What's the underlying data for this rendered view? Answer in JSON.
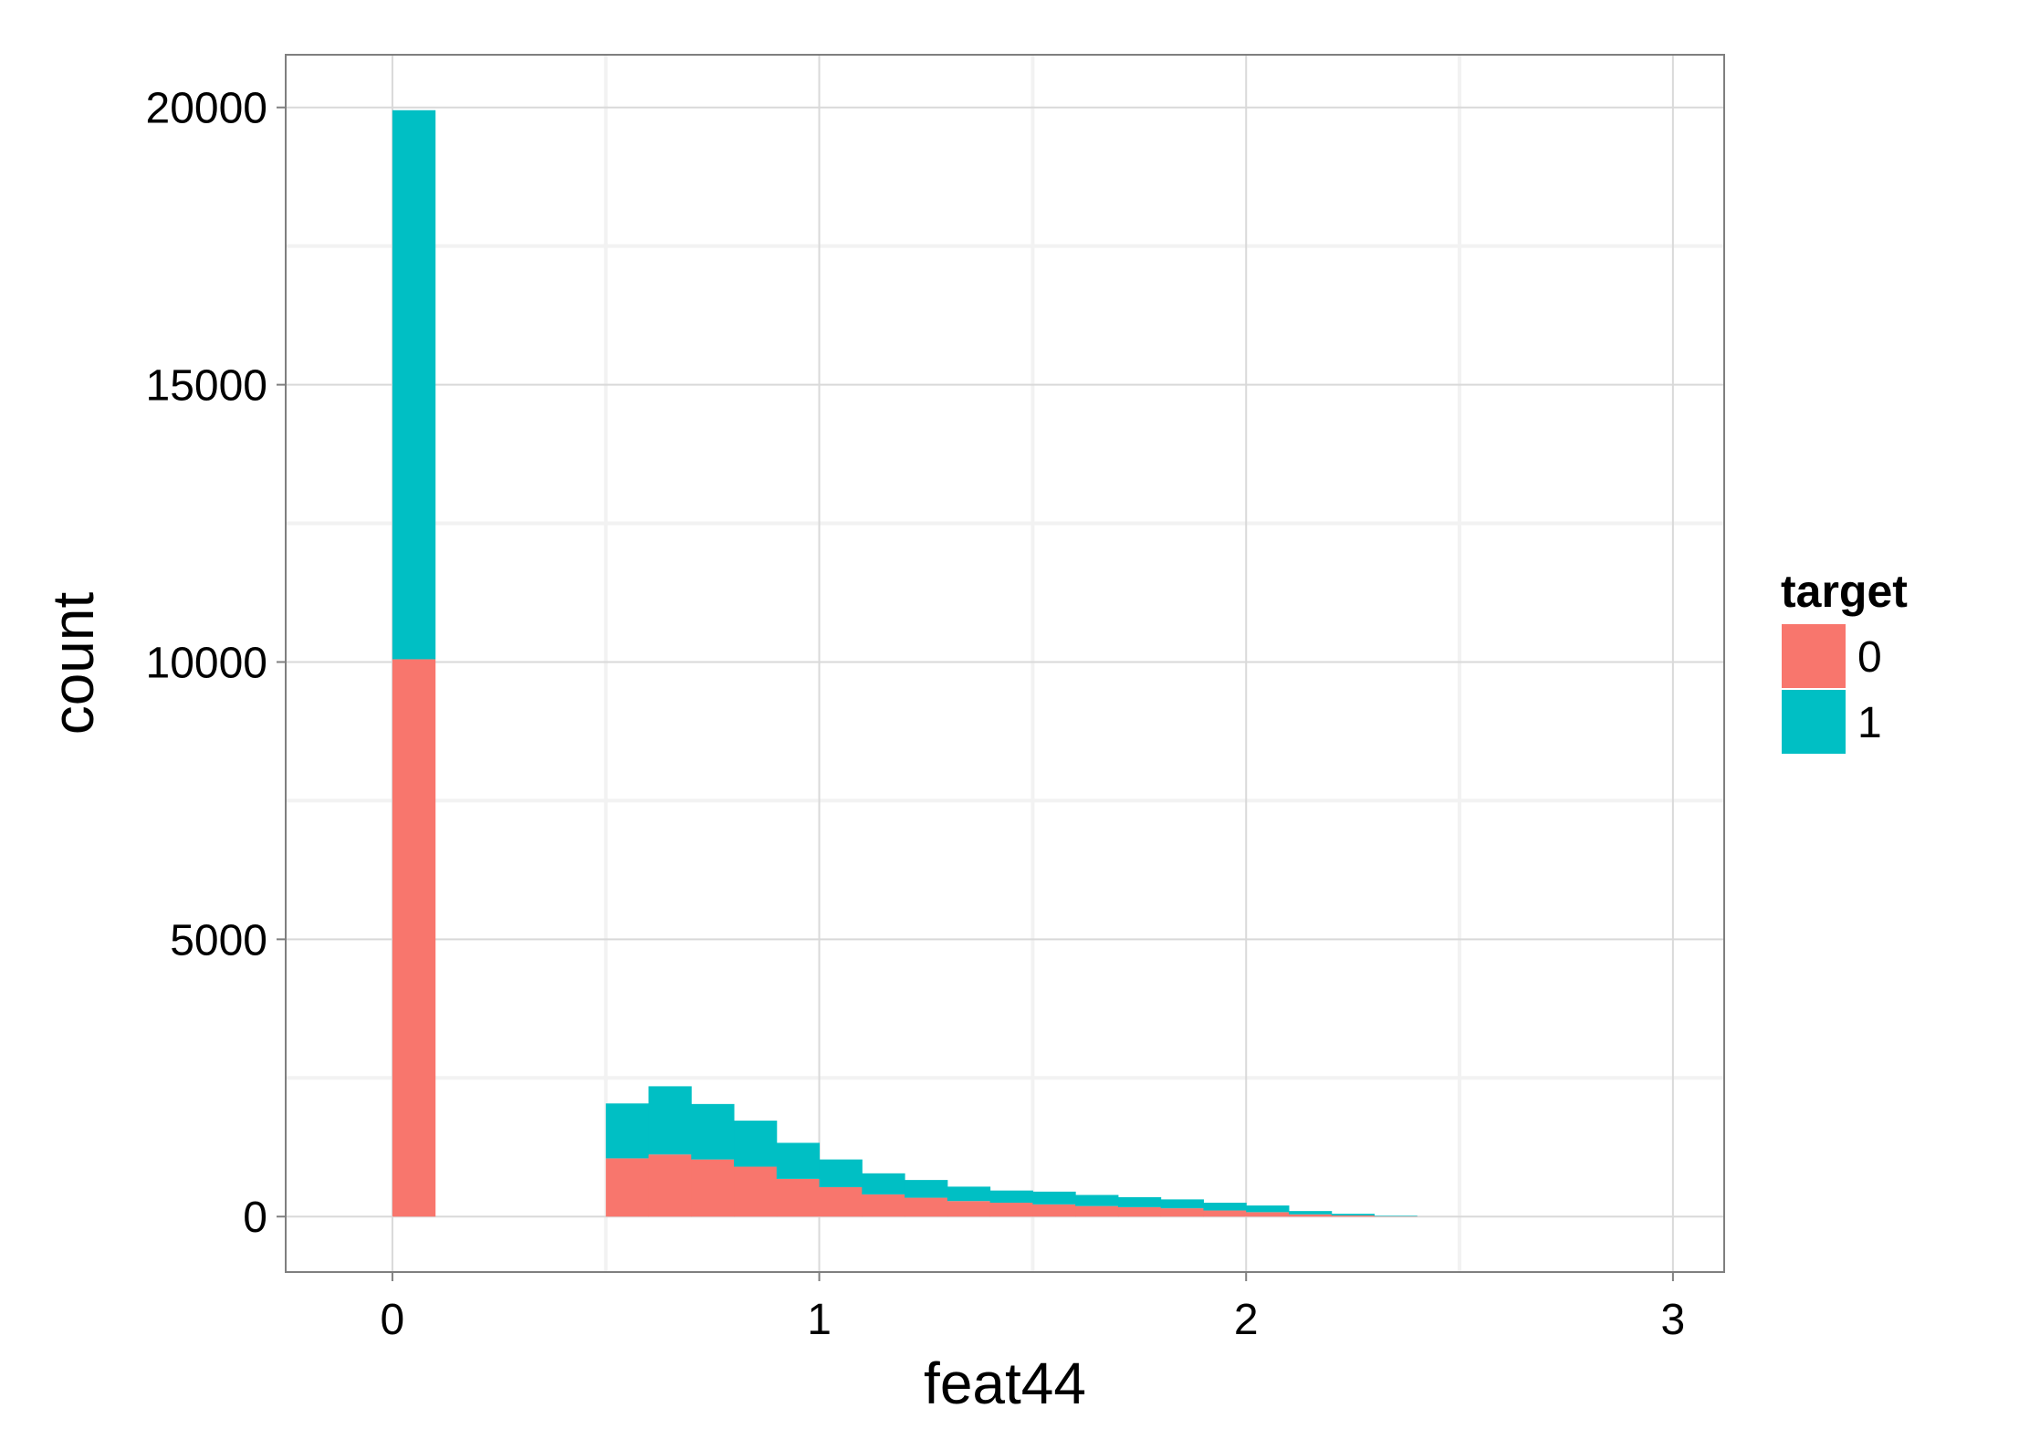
{
  "chart_data": {
    "type": "bar",
    "subtype": "stacked-histogram",
    "xlabel": "feat44",
    "ylabel": "count",
    "xlim": [
      -0.25,
      3.12
    ],
    "ylim": [
      -1000,
      20950
    ],
    "x_ticks": [
      0,
      1,
      2,
      3
    ],
    "x_tick_labels": [
      "0",
      "1",
      "2",
      "3"
    ],
    "y_ticks": [
      0,
      5000,
      10000,
      15000,
      20000
    ],
    "y_tick_labels": [
      "0",
      "5000",
      "10000",
      "15000",
      "20000"
    ],
    "grid": true,
    "bin_width": 0.1,
    "bin_starts": [
      0.0,
      0.5,
      0.6,
      0.7,
      0.8,
      0.9,
      1.0,
      1.1,
      1.2,
      1.3,
      1.4,
      1.5,
      1.6,
      1.7,
      1.8,
      1.9,
      2.0,
      2.1,
      2.2,
      2.3
    ],
    "legend": {
      "title": "target",
      "position": "right"
    },
    "series": [
      {
        "name": "0",
        "color": "#F8766D",
        "values": [
          10050,
          1050,
          1120,
          1030,
          900,
          680,
          530,
          400,
          340,
          280,
          250,
          220,
          190,
          170,
          150,
          110,
          80,
          40,
          20,
          5
        ]
      },
      {
        "name": "1",
        "color": "#00BFC4",
        "values": [
          9900,
          990,
          1230,
          1000,
          830,
          650,
          500,
          380,
          320,
          260,
          220,
          230,
          200,
          180,
          160,
          140,
          120,
          60,
          30,
          10
        ]
      }
    ]
  }
}
